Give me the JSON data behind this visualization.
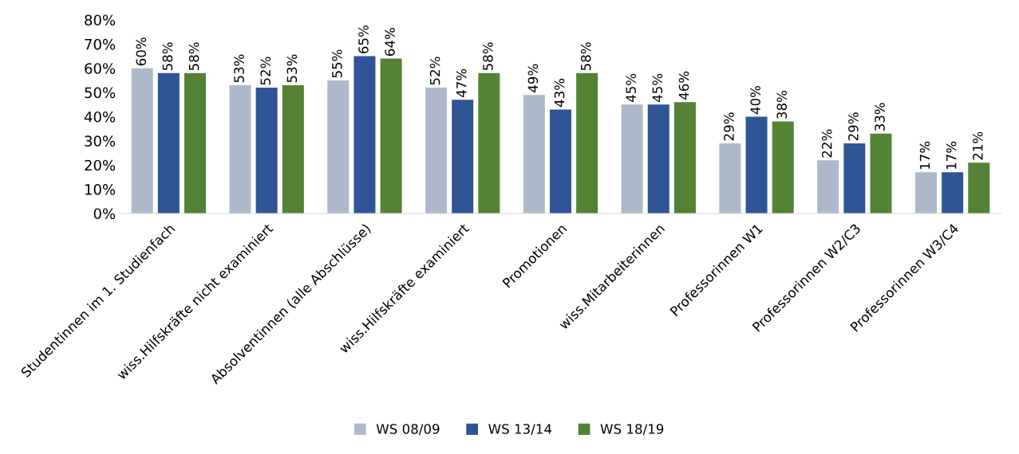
{
  "chart_data": {
    "type": "bar",
    "categories": [
      "Studentinnen im 1. Studienfach",
      "wiss.Hilfskräfte nicht examiniert",
      "Absolventinnen (alle Abschlüsse)",
      "wiss.Hilfskräfte examiniert",
      "Promotionen",
      "wiss.Mitarbeiterinnen",
      "Professorinnen W1",
      "Professorinnen W2/C3",
      "Professorinnen W3/C4"
    ],
    "series": [
      {
        "name": "WS 08/09",
        "color": "#adb9ca",
        "values": [
          60,
          53,
          55,
          52,
          49,
          45,
          29,
          22,
          17
        ],
        "value_labels": [
          "60%",
          "53%",
          "55%",
          "52%",
          "49%",
          "45%",
          "29%",
          "22%",
          "17%"
        ]
      },
      {
        "name": "WS 13/14",
        "color": "#2f5597",
        "values": [
          58,
          52,
          65,
          47,
          43,
          45,
          40,
          29,
          17
        ],
        "value_labels": [
          "58%",
          "52%",
          "65%",
          "47%",
          "43%",
          "45%",
          "40%",
          "29%",
          "17%"
        ]
      },
      {
        "name": "WS 18/19",
        "color": "#548235",
        "values": [
          58,
          53,
          64,
          58,
          58,
          46,
          38,
          33,
          21
        ],
        "value_labels": [
          "58%",
          "53%",
          "64%",
          "58%",
          "58%",
          "46%",
          "38%",
          "33%",
          "21%"
        ]
      }
    ],
    "ylim": [
      0,
      80
    ],
    "yticks": [
      {
        "value": 0,
        "label": "0%"
      },
      {
        "value": 10,
        "label": "10%"
      },
      {
        "value": 20,
        "label": "20%"
      },
      {
        "value": 30,
        "label": "30%"
      },
      {
        "value": 40,
        "label": "40%"
      },
      {
        "value": 50,
        "label": "50%"
      },
      {
        "value": 60,
        "label": "60%"
      },
      {
        "value": 70,
        "label": "70%"
      },
      {
        "value": 80,
        "label": "80%"
      }
    ],
    "grid": false,
    "legend": "bottom"
  }
}
